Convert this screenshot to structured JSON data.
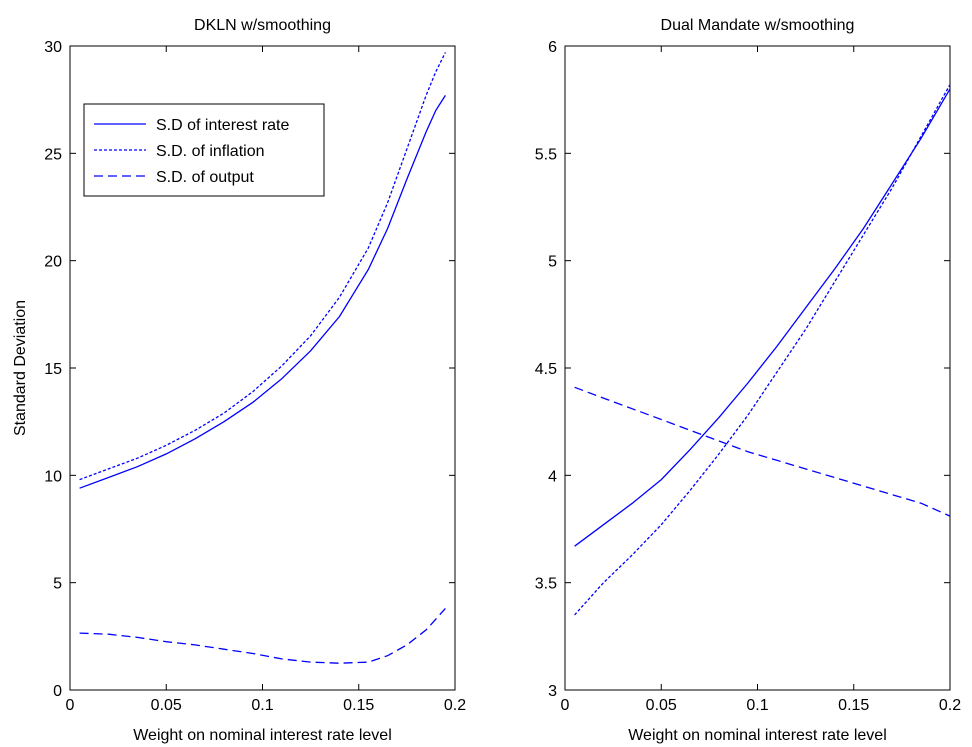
{
  "chart_data": [
    {
      "type": "line",
      "title": "DKLN w/smoothing",
      "xlabel": "Weight on nominal interest rate level",
      "ylabel": "Standard Deviation",
      "xlim": [
        0,
        0.2
      ],
      "ylim": [
        0,
        30
      ],
      "xticks": [
        0,
        0.05,
        0.1,
        0.15,
        0.2
      ],
      "xtick_labels": [
        "0",
        "0.05",
        "0.1",
        "0.15",
        "0.2"
      ],
      "yticks": [
        0,
        5,
        10,
        15,
        20,
        25,
        30
      ],
      "ytick_labels": [
        "0",
        "5",
        "10",
        "15",
        "20",
        "25",
        "30"
      ],
      "grid": false,
      "legend": {
        "position": "top-left",
        "entries": [
          "S.D of interest rate",
          "S.D. of inflation",
          "S.D. of output"
        ]
      },
      "series": [
        {
          "name": "S.D of interest rate",
          "color": "#0000ff",
          "style": "solid",
          "x": [
            0.005,
            0.02,
            0.035,
            0.05,
            0.065,
            0.08,
            0.095,
            0.11,
            0.125,
            0.14,
            0.155,
            0.165,
            0.175,
            0.185,
            0.19,
            0.195
          ],
          "y": [
            9.4,
            9.9,
            10.4,
            11.0,
            11.7,
            12.5,
            13.4,
            14.5,
            15.8,
            17.4,
            19.6,
            21.5,
            23.8,
            26.0,
            27.0,
            27.7
          ]
        },
        {
          "name": "S.D. of inflation",
          "color": "#0000ff",
          "style": "dotted",
          "x": [
            0.005,
            0.02,
            0.035,
            0.05,
            0.065,
            0.08,
            0.095,
            0.11,
            0.125,
            0.14,
            0.155,
            0.165,
            0.175,
            0.185,
            0.19,
            0.195
          ],
          "y": [
            9.8,
            10.3,
            10.8,
            11.4,
            12.1,
            12.9,
            13.9,
            15.1,
            16.5,
            18.3,
            20.6,
            22.7,
            25.2,
            27.7,
            28.8,
            29.7
          ]
        },
        {
          "name": "S.D. of output",
          "color": "#0000ff",
          "style": "dashed",
          "x": [
            0.005,
            0.02,
            0.035,
            0.05,
            0.065,
            0.08,
            0.095,
            0.11,
            0.125,
            0.14,
            0.155,
            0.165,
            0.175,
            0.185,
            0.19,
            0.195
          ],
          "y": [
            2.65,
            2.6,
            2.45,
            2.25,
            2.1,
            1.9,
            1.7,
            1.45,
            1.3,
            1.25,
            1.3,
            1.6,
            2.1,
            2.8,
            3.3,
            3.8
          ]
        }
      ]
    },
    {
      "type": "line",
      "title": "Dual Mandate w/smoothing",
      "xlabel": "Weight on nominal interest rate level",
      "ylabel": "",
      "xlim": [
        0,
        0.2
      ],
      "ylim": [
        3,
        6
      ],
      "xticks": [
        0,
        0.05,
        0.1,
        0.15,
        0.2
      ],
      "xtick_labels": [
        "0",
        "0.05",
        "0.1",
        "0.15",
        "0.2"
      ],
      "yticks": [
        3,
        3.5,
        4,
        4.5,
        5,
        5.5,
        6
      ],
      "ytick_labels": [
        "3",
        "3.5",
        "4",
        "4.5",
        "5",
        "5.5",
        "6"
      ],
      "grid": false,
      "series": [
        {
          "color": "#0000ff",
          "style": "solid",
          "x": [
            0.005,
            0.02,
            0.035,
            0.05,
            0.065,
            0.08,
            0.095,
            0.11,
            0.125,
            0.14,
            0.155,
            0.17,
            0.185,
            0.2
          ],
          "y": [
            3.67,
            3.77,
            3.87,
            3.98,
            4.12,
            4.27,
            4.43,
            4.6,
            4.78,
            4.96,
            5.15,
            5.36,
            5.57,
            5.8
          ]
        },
        {
          "color": "#0000ff",
          "style": "dotted",
          "x": [
            0.005,
            0.02,
            0.035,
            0.05,
            0.065,
            0.08,
            0.095,
            0.11,
            0.125,
            0.14,
            0.155,
            0.17,
            0.185,
            0.2
          ],
          "y": [
            3.35,
            3.5,
            3.63,
            3.77,
            3.93,
            4.1,
            4.28,
            4.48,
            4.68,
            4.9,
            5.12,
            5.34,
            5.58,
            5.82
          ]
        },
        {
          "color": "#0000ff",
          "style": "dashed",
          "x": [
            0.005,
            0.02,
            0.035,
            0.05,
            0.065,
            0.08,
            0.095,
            0.11,
            0.125,
            0.14,
            0.155,
            0.17,
            0.185,
            0.2
          ],
          "y": [
            4.41,
            4.36,
            4.31,
            4.26,
            4.21,
            4.16,
            4.11,
            4.07,
            4.03,
            3.99,
            3.95,
            3.91,
            3.87,
            3.81
          ]
        }
      ]
    }
  ]
}
